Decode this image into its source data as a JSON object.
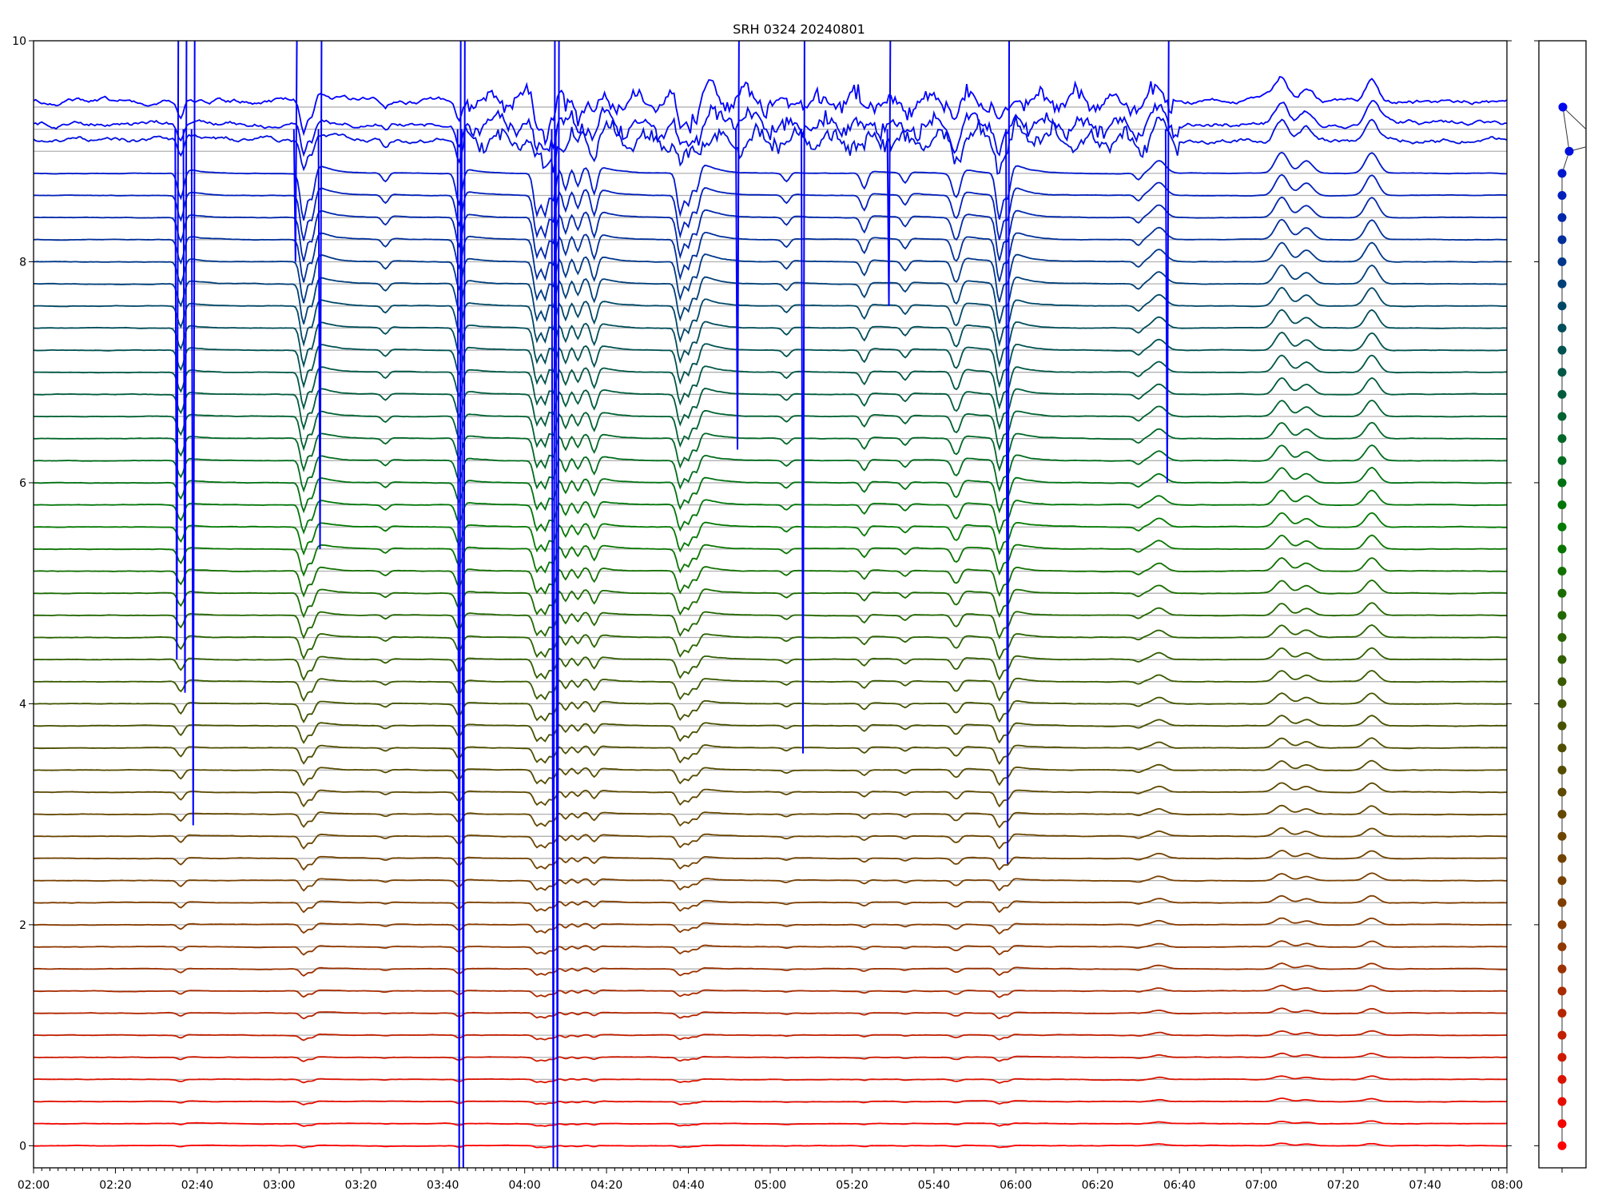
{
  "chart_data": {
    "type": "line",
    "title": "SRH 0324 20240801",
    "xlabel": "",
    "ylabel": "",
    "xlim": [
      "02:00",
      "08:00"
    ],
    "ylim": [
      -0.2,
      10
    ],
    "xticks": [
      "02:00",
      "02:20",
      "02:40",
      "03:00",
      "03:20",
      "03:40",
      "04:00",
      "04:20",
      "04:40",
      "05:00",
      "05:20",
      "05:40",
      "06:00",
      "06:20",
      "06:40",
      "07:00",
      "07:20",
      "07:40",
      "08:00"
    ],
    "yticks": [
      0,
      2,
      4,
      6,
      8,
      10
    ],
    "grid": "horizontal lines at each trace baseline",
    "series_count": 48,
    "baseline_step": 0.2,
    "color_stops": [
      "#ff0000",
      "#8a3a00",
      "#4a5000",
      "#007a00",
      "#004a60",
      "#0000ff"
    ],
    "dip_events": [
      {
        "time": "02:36",
        "depth": 0.25
      },
      {
        "time": "03:06",
        "depth": 0.45
      },
      {
        "time": "03:08",
        "depth": 0.3
      },
      {
        "time": "03:26",
        "depth": 0.08
      },
      {
        "time": "03:44",
        "depth": 0.3
      },
      {
        "time": "04:03",
        "depth": 0.4
      },
      {
        "time": "04:05",
        "depth": 0.45
      },
      {
        "time": "04:07",
        "depth": 0.35
      },
      {
        "time": "04:10",
        "depth": 0.25
      },
      {
        "time": "04:13",
        "depth": 0.2
      },
      {
        "time": "04:17",
        "depth": 0.25
      },
      {
        "time": "04:38",
        "depth": 0.4
      },
      {
        "time": "04:40",
        "depth": 0.35
      },
      {
        "time": "04:42",
        "depth": 0.25
      },
      {
        "time": "05:04",
        "depth": 0.08
      },
      {
        "time": "05:23",
        "depth": 0.15
      },
      {
        "time": "05:33",
        "depth": 0.1
      },
      {
        "time": "05:45",
        "depth": 0.15
      },
      {
        "time": "05:46",
        "depth": 0.15
      },
      {
        "time": "05:56",
        "depth": 0.45
      },
      {
        "time": "05:58",
        "depth": 0.3
      },
      {
        "time": "06:30",
        "depth": 0.06
      }
    ],
    "bump_events": [
      {
        "time": "06:35",
        "height": 0.12
      },
      {
        "time": "07:05",
        "height": 0.2
      },
      {
        "time": "07:11",
        "height": 0.12
      },
      {
        "time": "07:27",
        "height": 0.2
      }
    ],
    "spikes": [
      {
        "time": "02:35",
        "min": 4.4
      },
      {
        "time": "02:37",
        "min": 4.1
      },
      {
        "time": "02:39",
        "min": 2.9
      },
      {
        "time": "03:04",
        "min": 8.0
      },
      {
        "time": "03:10",
        "min": 5.4
      },
      {
        "time": "03:44",
        "min": -0.2
      },
      {
        "time": "03:45",
        "min": -0.2
      },
      {
        "time": "04:07",
        "min": -0.2
      },
      {
        "time": "04:08",
        "min": -0.2
      },
      {
        "time": "04:52",
        "min": 6.3
      },
      {
        "time": "05:08",
        "min": 3.55
      },
      {
        "time": "05:29",
        "min": 7.6
      },
      {
        "time": "05:58",
        "min": 2.55
      },
      {
        "time": "06:37",
        "min": 6.0
      }
    ]
  }
}
